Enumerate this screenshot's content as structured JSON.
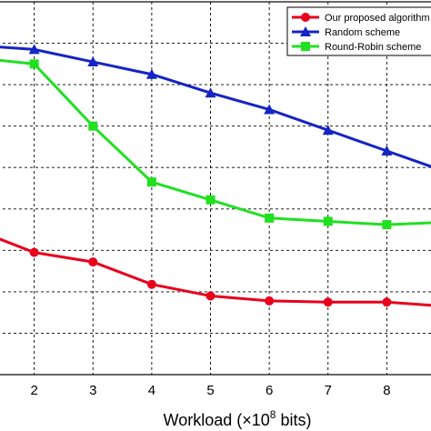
{
  "chart_data": {
    "type": "line",
    "title": "",
    "xlabel_parts": [
      "Workload (×10",
      "8",
      " bits)"
    ],
    "ylabel": "",
    "xlim": [
      1,
      9
    ],
    "ylim": [
      0,
      9
    ],
    "x_ticks": [
      "2",
      "3",
      "4",
      "5",
      "6",
      "7",
      "8"
    ],
    "grid": true,
    "legend_position": "top-right",
    "series": [
      {
        "name": "Our proposed algorithm",
        "color": "#e8001c",
        "marker": "circle",
        "x": [
          1,
          2,
          3,
          4,
          5,
          6,
          7,
          8,
          9
        ],
        "y": [
          3.5,
          2.95,
          2.72,
          2.18,
          1.9,
          1.78,
          1.75,
          1.75,
          1.65
        ]
      },
      {
        "name": "Random scheme",
        "color": "#1524c4",
        "marker": "triangle",
        "x": [
          1,
          2,
          3,
          4,
          5,
          6,
          7,
          8,
          9
        ],
        "y": [
          7.95,
          7.85,
          7.55,
          7.25,
          6.8,
          6.4,
          5.9,
          5.4,
          4.9
        ]
      },
      {
        "name": "Round-Robin scheme",
        "color": "#20e020",
        "marker": "square",
        "x": [
          1,
          2,
          3,
          4,
          5,
          6,
          7,
          8,
          9
        ],
        "y": [
          7.65,
          7.5,
          6.0,
          4.65,
          4.22,
          3.78,
          3.7,
          3.62,
          3.68
        ]
      }
    ]
  }
}
